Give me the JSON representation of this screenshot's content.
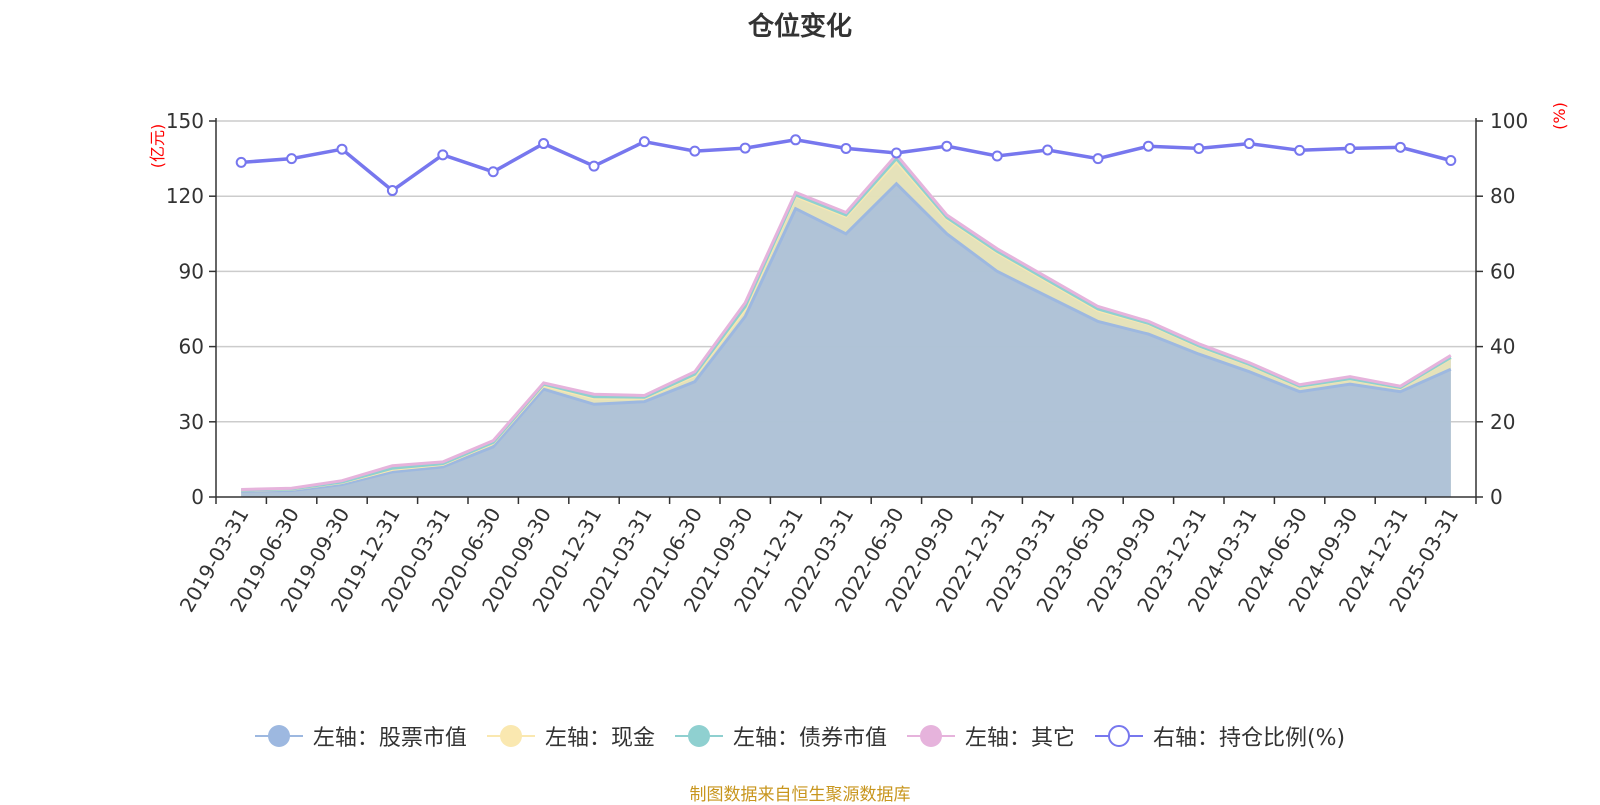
{
  "title": "仓位变化",
  "source_note": "制图数据来自恒生聚源数据库",
  "left_axis_unit": "(亿元)",
  "right_axis_unit": "(%)",
  "colors": {
    "stock": "#9db8e0",
    "cash": "#fae8b0",
    "bond": "#8fd0d0",
    "other": "#e6b3dc",
    "ratio": "#7777ee"
  },
  "legend": [
    {
      "label": "左轴：股票市值",
      "color": "#9db8e0",
      "hollow": false
    },
    {
      "label": "左轴：现金",
      "color": "#fae8b0",
      "hollow": false
    },
    {
      "label": "左轴：债券市值",
      "color": "#8fd0d0",
      "hollow": false
    },
    {
      "label": "左轴：其它",
      "color": "#e6b3dc",
      "hollow": false
    },
    {
      "label": "右轴：持仓比例(%)",
      "color": "#7777ee",
      "hollow": true
    }
  ],
  "chart_data": {
    "type": "area",
    "title": "仓位变化",
    "categories": [
      "2019-03-31",
      "2019-06-30",
      "2019-09-30",
      "2019-12-31",
      "2020-03-31",
      "2020-06-30",
      "2020-09-30",
      "2020-12-31",
      "2021-03-31",
      "2021-06-30",
      "2021-09-30",
      "2021-12-31",
      "2022-03-31",
      "2022-06-30",
      "2022-09-30",
      "2022-12-31",
      "2023-03-31",
      "2023-06-30",
      "2023-09-30",
      "2023-12-31",
      "2024-03-31",
      "2024-06-30",
      "2024-09-30",
      "2024-12-31",
      "2025-03-31"
    ],
    "left_axis": {
      "unit": "(亿元)",
      "ylim": [
        0,
        150
      ],
      "ticks": [
        0,
        30,
        60,
        90,
        120,
        150
      ]
    },
    "right_axis": {
      "unit": "(%)",
      "ylim": [
        0,
        100
      ],
      "ticks": [
        0,
        20,
        40,
        60,
        80,
        100
      ]
    },
    "grid": true,
    "legend_position": "bottom",
    "stacked": true,
    "series": [
      {
        "name": "左轴：股票市值",
        "axis": "left",
        "type": "area",
        "values": [
          2.3,
          2.6,
          5.0,
          10.0,
          12.0,
          20.0,
          43.0,
          37.0,
          38.0,
          46.0,
          72.0,
          115.0,
          105.0,
          125.0,
          105.0,
          90.0,
          80.0,
          70.0,
          65.0,
          57.0,
          50.0,
          42.0,
          45.0,
          42.0,
          51.0
        ]
      },
      {
        "name": "左轴：现金",
        "axis": "left",
        "type": "area",
        "values": [
          0.4,
          0.5,
          0.8,
          1.0,
          1.0,
          1.5,
          1.5,
          2.5,
          1.5,
          2.5,
          3.0,
          5.0,
          7.0,
          9.0,
          6.0,
          7.5,
          6.0,
          4.5,
          4.0,
          3.0,
          2.7,
          2.0,
          2.0,
          1.5,
          4.5
        ]
      },
      {
        "name": "左轴：债券市值",
        "axis": "left",
        "type": "area",
        "values": [
          0.1,
          0.1,
          0.2,
          0.5,
          0.3,
          0.3,
          0.5,
          0.5,
          0.3,
          0.5,
          1.0,
          0.5,
          0.5,
          1.0,
          0.5,
          0.5,
          0.5,
          0.5,
          0.3,
          0.3,
          0.2,
          0.2,
          0.2,
          0.2,
          0.2
        ]
      },
      {
        "name": "左轴：其它",
        "axis": "left",
        "type": "area",
        "values": [
          0.2,
          0.3,
          0.5,
          1.0,
          0.7,
          0.7,
          0.5,
          1.0,
          0.7,
          1.0,
          1.5,
          1.0,
          1.0,
          1.5,
          1.0,
          1.0,
          1.0,
          1.0,
          0.8,
          0.8,
          0.7,
          0.6,
          0.8,
          0.5,
          0.8
        ]
      },
      {
        "name": "右轴：持仓比例(%)",
        "axis": "right",
        "type": "line",
        "values": [
          89.0,
          90.0,
          92.5,
          81.5,
          91.0,
          86.5,
          94.0,
          88.0,
          94.5,
          92.0,
          92.8,
          95.0,
          92.7,
          91.5,
          93.3,
          90.7,
          92.3,
          90.0,
          93.3,
          92.7,
          94.0,
          92.2,
          92.7,
          93.0,
          89.5
        ]
      }
    ]
  }
}
